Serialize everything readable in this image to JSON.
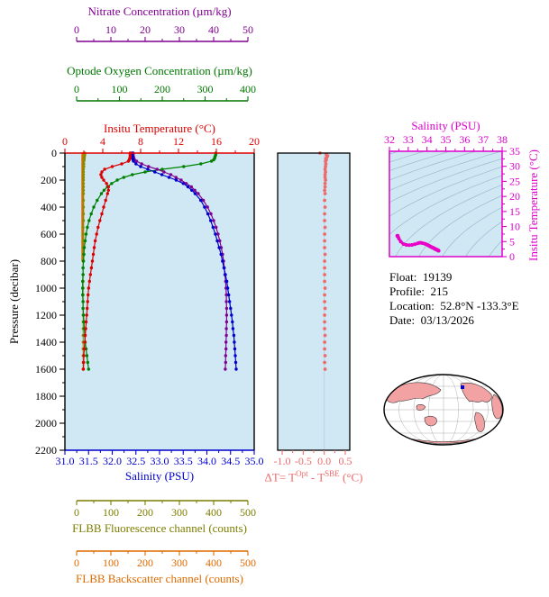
{
  "colors": {
    "plot_bg": "#cfe8f4",
    "contour": "#9db9ce",
    "map_land": "#f2a2a2",
    "map_ocean": "#ffffff",
    "frame": "#000000"
  },
  "axes": {
    "nitrate": {
      "title": "Nitrate Concentration (µm/kg)",
      "color": "#800090",
      "range": [
        0,
        50
      ],
      "ticks": [
        "0",
        "10",
        "20",
        "30",
        "40",
        "50"
      ]
    },
    "oxygen": {
      "title": "Optode Oxygen Concentration (µm/kg)",
      "color": "#007700",
      "range": [
        0,
        400
      ],
      "ticks": [
        "0",
        "100",
        "200",
        "300",
        "400"
      ]
    },
    "temperature": {
      "title": "Insitu Temperature (°C)",
      "color": "#dd0000",
      "range": [
        0,
        20
      ],
      "ticks": [
        "0",
        "4",
        "8",
        "12",
        "16",
        "20"
      ]
    },
    "pressure": {
      "title": "Pressure (decibar)",
      "color": "#000000",
      "range": [
        0,
        2200
      ],
      "ticks": [
        "0",
        "200",
        "400",
        "600",
        "800",
        "1000",
        "1200",
        "1400",
        "1600",
        "1800",
        "2000",
        "2200"
      ]
    },
    "salinity": {
      "title": "Salinity (PSU)",
      "color": "#0000cc",
      "range": [
        31.0,
        35.0
      ],
      "ticks": [
        "31.0",
        "31.5",
        "32.0",
        "32.5",
        "33.0",
        "33.5",
        "34.0",
        "34.5",
        "35.0"
      ]
    },
    "delta_t": {
      "t1": "ΔT= T",
      "sup1": "Opt",
      "t2": " - T",
      "sup2": "SBE",
      "t3": " (°C)",
      "color": "#ee6b6b",
      "range": [
        -1.0,
        0.5
      ],
      "ticks": [
        "-1.0",
        "-0.5",
        "0.0",
        "0.5"
      ]
    },
    "ts_salinity": {
      "title": "Salinity (PSU)",
      "color": "#dd00cc",
      "range": [
        32,
        38
      ],
      "ticks": [
        "32",
        "33",
        "34",
        "35",
        "36",
        "37",
        "38"
      ]
    },
    "ts_temperature": {
      "title": "Insitu Temperature (°C)",
      "color": "#dd00cc",
      "range": [
        0,
        35
      ],
      "ticks": [
        "0",
        "5",
        "10",
        "15",
        "20",
        "25",
        "30",
        "35"
      ]
    },
    "fluorescence": {
      "title": "FLBB Fluorescence channel (counts)",
      "color": "#7d7d00",
      "range": [
        0,
        500
      ],
      "ticks": [
        "0",
        "100",
        "200",
        "300",
        "400",
        "500"
      ]
    },
    "backscatter": {
      "title": "FLBB Backscatter channel (counts)",
      "color": "#dd6a00",
      "range": [
        0,
        500
      ],
      "ticks": [
        "0",
        "100",
        "200",
        "300",
        "400",
        "500"
      ]
    }
  },
  "info": {
    "lines": [
      "Float:  19139",
      "Profile:  215",
      "Location:  52.8°N -133.3°E",
      "Date:  03/13/2026"
    ]
  },
  "chart_data": [
    {
      "id": "profile-plot",
      "type": "line",
      "ylabel": "Pressure (decibar)",
      "ylim": [
        0,
        2200
      ],
      "pressure_dbar": [
        0,
        10,
        20,
        30,
        40,
        50,
        60,
        80,
        100,
        120,
        140,
        160,
        180,
        200,
        225,
        250,
        275,
        300,
        350,
        400,
        450,
        500,
        550,
        600,
        650,
        700,
        750,
        800,
        850,
        900,
        950,
        1000,
        1050,
        1100,
        1150,
        1200,
        1250,
        1300,
        1350,
        1400,
        1450,
        1500,
        1550,
        1600
      ],
      "series": [
        {
          "name": "FLBB Backscatter channel (counts)",
          "axis": "backscatter",
          "color": "#dd6a00",
          "xlim": [
            0,
            500
          ],
          "line_width": 3,
          "marker_r": 1.2,
          "values": [
            19,
            18,
            18,
            18,
            18,
            18,
            18,
            18,
            18,
            18,
            18,
            18,
            18,
            18,
            18,
            18,
            18,
            18,
            18,
            18,
            18,
            18,
            18,
            18,
            18,
            18,
            18,
            18,
            null,
            null,
            null,
            null,
            null,
            null,
            null,
            null,
            null,
            null,
            null,
            null,
            null,
            null,
            null,
            null
          ]
        },
        {
          "name": "FLBB Fluorescence channel (counts)",
          "axis": "fluorescence",
          "color": "#8a8a00",
          "xlim": [
            0,
            500
          ],
          "line_width": 1,
          "marker_r": 1.6,
          "values": [
            24,
            24,
            23,
            23,
            22,
            22,
            21,
            21,
            21,
            20,
            20,
            20,
            20,
            20,
            20,
            20,
            20,
            20,
            20,
            20,
            20,
            20,
            19,
            19,
            19,
            19,
            19,
            19,
            19,
            19,
            19,
            19,
            19,
            19,
            19,
            19,
            19,
            19,
            19,
            19,
            19,
            19,
            19,
            19
          ]
        },
        {
          "name": "Optode Oxygen Concentration (µm/kg)",
          "axis": "oxygen",
          "color": "#008000",
          "xlim": [
            0,
            400
          ],
          "line_width": 1.2,
          "marker_r": 1.7,
          "values": [
            325,
            325,
            324,
            323,
            322,
            320,
            315,
            290,
            250,
            200,
            160,
            130,
            110,
            95,
            82,
            72,
            64,
            58,
            48,
            40,
            34,
            29,
            25,
            22,
            20,
            18,
            17,
            16,
            15,
            15,
            14,
            14,
            14,
            15,
            15,
            16,
            17,
            18,
            19,
            20,
            22,
            24,
            26,
            28
          ]
        },
        {
          "name": "Nitrate Concentration (µm/kg)",
          "axis": "nitrate",
          "color": "#800090",
          "xlim": [
            0,
            50
          ],
          "line_width": 1.2,
          "marker_r": 1.7,
          "values": [
            16.5,
            16.5,
            16.5,
            16.6,
            16.7,
            16.9,
            17.5,
            19,
            21,
            23.5,
            25.5,
            27.5,
            29,
            30.5,
            32,
            33.5,
            34.5,
            35.5,
            37,
            38.2,
            39.2,
            40,
            40.7,
            41.3,
            41.8,
            42.2,
            42.6,
            42.9,
            43.1,
            43.3,
            43.5,
            43.6,
            43.7,
            43.7,
            43.8,
            43.8,
            43.8,
            43.7,
            43.7,
            43.6,
            43.6,
            43.5,
            43.5,
            43.4
          ]
        },
        {
          "name": "Salinity (PSU)",
          "axis": "salinity",
          "color": "#0000cc",
          "xlim": [
            31,
            35
          ],
          "line_width": 1.2,
          "marker_r": 1.7,
          "values": [
            32.42,
            32.42,
            32.42,
            32.43,
            32.43,
            32.44,
            32.45,
            32.5,
            32.6,
            32.75,
            32.9,
            33.05,
            33.2,
            33.35,
            33.5,
            33.6,
            33.68,
            33.75,
            33.87,
            33.95,
            34.02,
            34.08,
            34.13,
            34.18,
            34.22,
            34.26,
            34.3,
            34.33,
            34.36,
            34.39,
            34.42,
            34.44,
            34.46,
            34.48,
            34.5,
            34.52,
            34.54,
            34.55,
            34.57,
            34.58,
            34.59,
            34.6,
            34.61,
            34.62
          ]
        },
        {
          "name": "Insitu Temperature (°C)",
          "axis": "temperature",
          "color": "#dd0000",
          "xlim": [
            0,
            20
          ],
          "line_width": 1.2,
          "marker_r": 1.7,
          "values": [
            6.9,
            6.9,
            6.9,
            6.9,
            6.85,
            6.8,
            6.7,
            6.0,
            5.0,
            4.2,
            3.9,
            3.8,
            3.9,
            4.1,
            4.4,
            4.6,
            4.6,
            4.5,
            4.3,
            4.1,
            3.9,
            3.7,
            3.5,
            3.35,
            3.2,
            3.1,
            3.0,
            2.9,
            2.8,
            2.7,
            2.6,
            2.5,
            2.45,
            2.4,
            2.35,
            2.3,
            2.25,
            2.2,
            2.15,
            2.1,
            2.05,
            2.0,
            1.98,
            1.95
          ]
        }
      ]
    },
    {
      "id": "delta-t-plot",
      "type": "scatter",
      "xlabel": "ΔT= TOpt - TSBE (°C)",
      "xlim": [
        -1.0,
        0.5
      ],
      "ylim": [
        0,
        2200
      ],
      "color": "#ee6b6b",
      "values": [
        -0.1,
        0.05,
        0.08,
        0.06,
        0.04,
        0.05,
        0.03,
        0.04,
        0.03,
        0.02,
        0.03,
        0.02,
        0.02,
        0.03,
        0.02,
        0.02,
        0.01,
        0.02,
        0.01,
        0.02,
        0.01,
        0.01,
        0.02,
        0.01,
        0.01,
        0.01,
        0.02,
        0.01,
        0.01,
        0.01,
        0.01,
        0.02,
        0.01,
        0.01,
        0.02,
        0.01,
        0.01,
        0.01,
        0.02,
        0.01,
        0.01,
        0.02,
        0.01,
        0.02
      ]
    },
    {
      "id": "ts-diagram",
      "type": "line",
      "title": "Salinity (PSU) vs Insitu Temperature (°C)",
      "xlim": [
        32,
        38
      ],
      "ylim": [
        0,
        35
      ],
      "color": "#e800c8",
      "derived_from": [
        "salinity",
        "temperature"
      ],
      "sigma_theta_contours": [
        18,
        19,
        20,
        21,
        22,
        23,
        24,
        25,
        26,
        27,
        28,
        29,
        30
      ]
    }
  ]
}
